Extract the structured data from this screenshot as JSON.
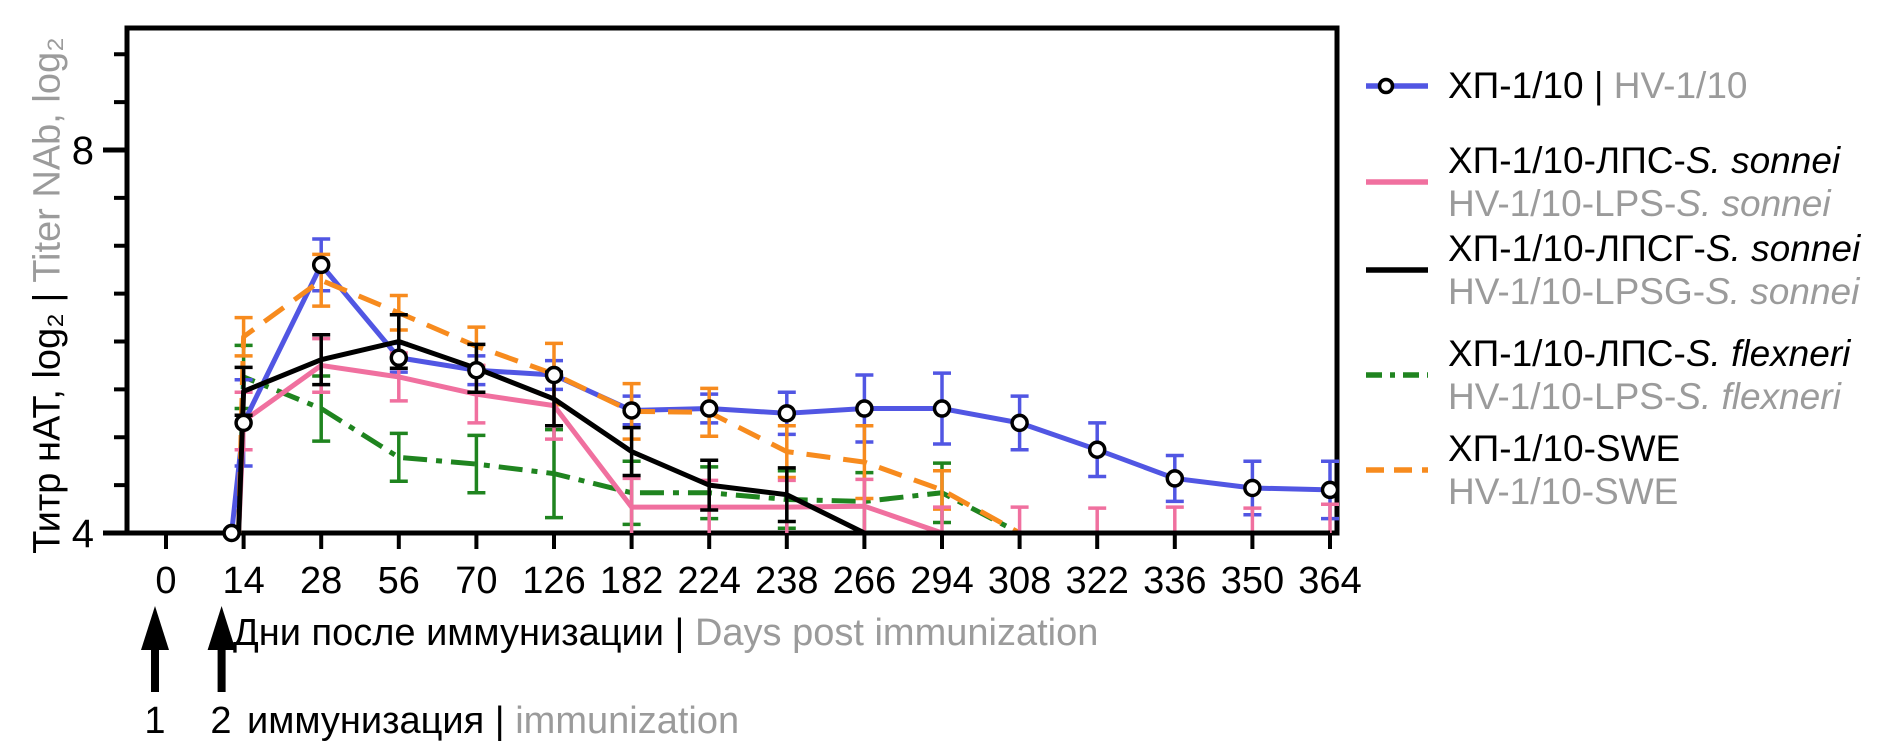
{
  "colors": {
    "blue": "#5156e3",
    "pink": "#f0709f",
    "black": "#000000",
    "green": "#1f841f",
    "orange": "#f78b1e",
    "gray_text": "#9b9b9b"
  },
  "chart_data": {
    "type": "line",
    "title": "",
    "x_axis": {
      "label_ru": "Дни после иммунизации |",
      "label_en": "Days post immunization",
      "days": [
        "0",
        "14",
        "28",
        "56",
        "70",
        "126",
        "182",
        "224",
        "238",
        "266",
        "294",
        "308",
        "322",
        "336",
        "350",
        "364"
      ]
    },
    "y_axis": {
      "label_ru": "Титр нАТ, log₂ |",
      "label_en": "Titer NAb, log₂",
      "ylim": [
        4,
        9.27
      ],
      "minor_tick_step": 0.5,
      "ticks": [
        {
          "value": 4,
          "label": "4"
        },
        {
          "value": 8,
          "label": "8"
        }
      ]
    },
    "baseline_value": 4,
    "series": [
      {
        "key": "hv-1-10",
        "name_ru": "ХП-1/10",
        "name_en": "HV-1/10",
        "color_key": "blue",
        "dash": "solid",
        "marker": "circle",
        "values": [
          4,
          5.15,
          6.8,
          5.83,
          5.7,
          5.65,
          5.28,
          5.3,
          5.25,
          5.3,
          5.3,
          5.15,
          4.87,
          4.57,
          4.47,
          4.45
        ],
        "err": [
          0,
          0.45,
          0.27,
          0.15,
          0.15,
          0.15,
          0.15,
          0.15,
          0.22,
          0.35,
          0.37,
          0.28,
          0.28,
          0.24,
          0.28,
          0.3
        ]
      },
      {
        "key": "hv-1-10-lps-sonnei",
        "name_ru": "ХП-1/10-ЛПС-S. sonnei",
        "name_en": "HV-1/10-LPS-S. sonnei",
        "color_key": "pink",
        "dash": "solid",
        "marker": "none",
        "values": [
          4,
          5.17,
          5.75,
          5.63,
          5.45,
          5.33,
          4.27,
          4.27,
          4.27,
          4.28,
          4,
          4,
          4,
          4,
          4,
          4
        ],
        "err": [
          0,
          0.3,
          0.28,
          0.25,
          0.3,
          0.35,
          0.3,
          0.28,
          0.28,
          0.28,
          0.27,
          0.27,
          0.26,
          0.27,
          0.26,
          0.3
        ]
      },
      {
        "key": "hv-1-10-lpsg-sonnei",
        "name_ru": "ХП-1/10-ЛПСГ-S. sonnei",
        "name_en": "HV-1/10-LPSG-S. sonnei",
        "color_key": "black",
        "dash": "solid",
        "marker": "none",
        "values": [
          4,
          5.48,
          5.81,
          6.0,
          5.72,
          5.4,
          4.85,
          4.5,
          4.4,
          4,
          4,
          4,
          4,
          4,
          4,
          4
        ],
        "err": [
          0,
          0.25,
          0.26,
          0.28,
          0.25,
          0.28,
          0.25,
          0.26,
          0.28,
          0,
          0,
          0,
          0,
          0,
          0,
          0
        ]
      },
      {
        "key": "hv-1-10-lps-flexneri",
        "name_ru": "ХП-1/10-ЛПС-S. flexneri",
        "name_en": "HV-1/10-LPS-S. flexneri",
        "color_key": "green",
        "dash": "dashdot",
        "marker": "none",
        "values": [
          4,
          5.63,
          5.3,
          4.79,
          4.72,
          4.62,
          4.42,
          4.42,
          4.35,
          4.33,
          4.42,
          4,
          4,
          4,
          4,
          4
        ],
        "err": [
          0,
          0.33,
          0.34,
          0.25,
          0.3,
          0.46,
          0.33,
          0.27,
          0.3,
          0.3,
          0.31,
          0,
          0,
          0,
          0,
          0
        ]
      },
      {
        "key": "hv-1-10-swe",
        "name_ru": "ХП-1/10-SWE",
        "name_en": "HV-1/10-SWE",
        "color_key": "orange",
        "dash": "dashed",
        "marker": "none",
        "values": [
          4,
          6.05,
          6.64,
          6.3,
          5.95,
          5.66,
          5.27,
          5.26,
          4.85,
          4.74,
          4.45,
          4,
          4,
          4,
          4,
          4
        ],
        "err": [
          0,
          0.2,
          0.27,
          0.18,
          0.2,
          0.32,
          0.29,
          0.25,
          0.27,
          0.38,
          0.2,
          0,
          0,
          0,
          0,
          0
        ]
      }
    ]
  },
  "legend": {
    "rows": [
      {
        "style": "blue-circle",
        "color_key": "blue",
        "ru_prefix": "ХП-1/10 |",
        "ru_species": "",
        "en_prefix": "HV-1/10",
        "en_species": ""
      },
      {
        "style": "solid",
        "color_key": "pink",
        "ru_prefix": "ХП-1/10-ЛПС-",
        "ru_species": "S. sonnei",
        "en_prefix": "HV-1/10-LPS-",
        "en_species": "S. sonnei"
      },
      {
        "style": "solid",
        "color_key": "black",
        "ru_prefix": "ХП-1/10-ЛПСГ-",
        "ru_species": "S. sonnei",
        "en_prefix": "HV-1/10-LPSG-",
        "en_species": "S. sonnei"
      },
      {
        "style": "dashdot",
        "color_key": "green",
        "ru_prefix": "ХП-1/10-ЛПС-",
        "ru_species": "S. flexneri",
        "en_prefix": "HV-1/10-LPS-",
        "en_species": "S. flexneri"
      },
      {
        "style": "dashed",
        "color_key": "orange",
        "ru_prefix": "ХП-1/10-SWE",
        "ru_species": "",
        "en_prefix": "HV-1/10-SWE",
        "en_species": ""
      }
    ]
  },
  "annotation": {
    "label1": "1",
    "label2": "2",
    "ru": "иммунизация |",
    "en": "immunization"
  }
}
